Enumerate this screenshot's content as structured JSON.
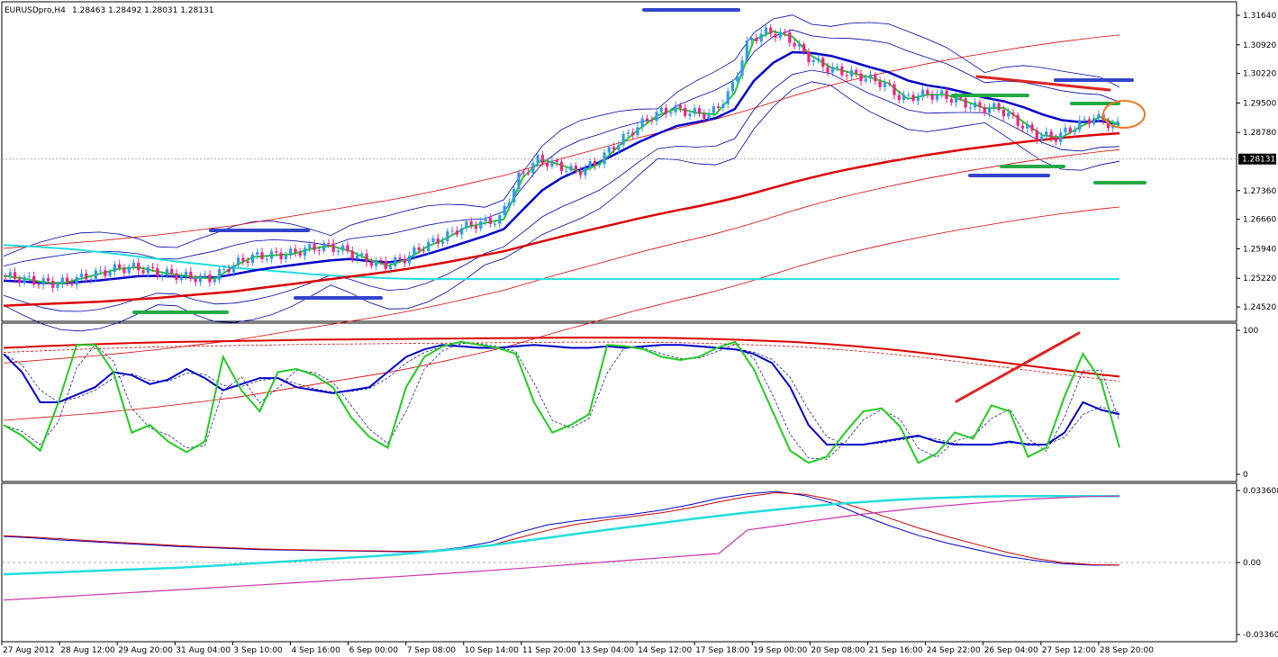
{
  "header": {
    "symbol": "EURUSDpro,H4",
    "ohlc": "1.28463 1.28492 1.28031 1.28131"
  },
  "colors": {
    "bull": "#3399ee",
    "bear": "#ee2288",
    "ema_fast": "#22cc22",
    "ema_mid": "#0000cc",
    "ma_slow": "#dd0000",
    "cyan": "#22dddd",
    "magenta": "#cc33aa",
    "orange": "#ee7722"
  },
  "chart_data": [
    {
      "type": "candlestick",
      "panel": "price",
      "ylim": [
        1.2417,
        1.3197
      ],
      "y_ticks": [
        "1.31640",
        "1.30920",
        "1.30220",
        "1.29500",
        "1.28780",
        "1.27360",
        "1.26660",
        "1.25940",
        "1.25220",
        "1.24520"
      ],
      "current_price": "1.28131",
      "series": [
        {
          "name": "ema_fast",
          "values": [
            1.2528,
            1.2522,
            1.2513,
            1.2509,
            1.2521,
            1.2533,
            1.2545,
            1.2549,
            1.2538,
            1.2531,
            1.2524,
            1.2521,
            1.2552,
            1.2574,
            1.2578,
            1.2581,
            1.2594,
            1.2601,
            1.2589,
            1.2567,
            1.2553,
            1.2569,
            1.2599,
            1.2619,
            1.2646,
            1.2657,
            1.2666,
            1.2769,
            1.2812,
            1.2798,
            1.2781,
            1.2802,
            1.2846,
            1.2885,
            1.292,
            1.2937,
            1.2926,
            1.2922,
            1.2975,
            1.3104,
            1.3125,
            1.3112,
            1.3065,
            1.3037,
            1.3024,
            1.3013,
            1.2998,
            1.296,
            1.297,
            1.297,
            1.2954,
            1.2937,
            1.2938,
            1.2904,
            1.2871,
            1.2866,
            1.2893,
            1.2916,
            1.2895
          ]
        },
        {
          "name": "ema_mid",
          "values": [
            1.2516,
            1.2514,
            1.2511,
            1.251,
            1.2513,
            1.2517,
            1.2522,
            1.2527,
            1.2528,
            1.2526,
            1.2524,
            1.2524,
            1.2532,
            1.2541,
            1.2548,
            1.2554,
            1.256,
            1.2566,
            1.2569,
            1.2564,
            1.2561,
            1.2568,
            1.2581,
            1.2595,
            1.261,
            1.2625,
            1.2642,
            1.269,
            1.2737,
            1.2767,
            1.2788,
            1.2806,
            1.283,
            1.2854,
            1.2875,
            1.2894,
            1.2903,
            1.2913,
            1.2935,
            1.3004,
            1.3048,
            1.3074,
            1.3072,
            1.3065,
            1.3052,
            1.3038,
            1.3025,
            1.3005,
            1.2993,
            1.2986,
            1.2975,
            1.2963,
            1.2954,
            1.294,
            1.2922,
            1.2908,
            1.2903,
            1.2906,
            1.2898
          ]
        },
        {
          "name": "ma_slow",
          "values": [
            1.2455,
            1.2457,
            1.2459,
            1.2461,
            1.2463,
            1.2465,
            1.2468,
            1.2471,
            1.2474,
            1.2478,
            1.2482,
            1.2486,
            1.249,
            1.2496,
            1.2502,
            1.2508,
            1.2514,
            1.252,
            1.2526,
            1.2532,
            1.2538,
            1.2545,
            1.2553,
            1.2561,
            1.257,
            1.2579,
            1.2588,
            1.26,
            1.2612,
            1.2624,
            1.2635,
            1.2646,
            1.2657,
            1.2668,
            1.2678,
            1.2688,
            1.2697,
            1.2707,
            1.2718,
            1.273,
            1.2743,
            1.2756,
            1.2768,
            1.2779,
            1.2789,
            1.2798,
            1.2807,
            1.2815,
            1.2823,
            1.283,
            1.2837,
            1.2843,
            1.2849,
            1.2855,
            1.286,
            1.2865,
            1.2869,
            1.2873,
            1.2876
          ]
        },
        {
          "name": "cyan_line",
          "values": [
            1.2603,
            1.2601,
            1.2598,
            1.2595,
            1.2591,
            1.2586,
            1.2581,
            1.2575,
            1.2569,
            1.2563,
            1.2558,
            1.2553,
            1.2548,
            1.2544,
            1.254,
            1.2536,
            1.2532,
            1.2529,
            1.2526,
            1.2524,
            1.2522,
            1.2521,
            1.252,
            1.252,
            1.252,
            1.252,
            1.252,
            1.252,
            1.252,
            1.252,
            1.252,
            1.252,
            1.252,
            1.252,
            1.252,
            1.252,
            1.252,
            1.252,
            1.252,
            1.252,
            1.252,
            1.252,
            1.252,
            1.252,
            1.252,
            1.252,
            1.252,
            1.252,
            1.252,
            1.252,
            1.252,
            1.252,
            1.252,
            1.252,
            1.252,
            1.252,
            1.252,
            1.252,
            1.252
          ]
        }
      ]
    },
    {
      "type": "line",
      "panel": "oscillator",
      "ylim": [
        0,
        100
      ],
      "y_ticks": [
        "100",
        "0"
      ],
      "series": [
        {
          "name": "green",
          "values": [
            35,
            28,
            18,
            50,
            88,
            88,
            70,
            30,
            35,
            24,
            17,
            24,
            80,
            58,
            44,
            70,
            72,
            68,
            60,
            40,
            27,
            20,
            60,
            80,
            87,
            90,
            88,
            86,
            82,
            50,
            30,
            35,
            42,
            88,
            87,
            85,
            80,
            78,
            80,
            86,
            90,
            72,
            45,
            18,
            10,
            14,
            30,
            44,
            46,
            34,
            10,
            16,
            30,
            26,
            48,
            44,
            14,
            20,
            54,
            82,
            64,
            20
          ]
        },
        {
          "name": "blue",
          "values": [
            82,
            70,
            50,
            50,
            55,
            60,
            70,
            68,
            62,
            65,
            72,
            66,
            58,
            62,
            66,
            66,
            60,
            58,
            56,
            58,
            60,
            70,
            80,
            85,
            88,
            87,
            86,
            86,
            87,
            88,
            87,
            86,
            86,
            87,
            86,
            87,
            88,
            88,
            87,
            86,
            85,
            82,
            76,
            60,
            35,
            22,
            22,
            22,
            24,
            26,
            28,
            24,
            22,
            22,
            22,
            24,
            22,
            22,
            30,
            50,
            45,
            42
          ]
        },
        {
          "name": "red",
          "values": [
            86,
            86.5,
            87,
            87.5,
            88,
            88.4,
            88.8,
            89.2,
            89.5,
            89.8,
            90,
            90.2,
            90.4,
            90.6,
            90.8,
            91,
            91.2,
            91.4,
            91.5,
            91.6,
            91.7,
            91.8,
            91.9,
            92,
            92.1,
            92.2,
            92.3,
            92.4,
            92.5,
            92.6,
            92.7,
            92.8,
            92.8,
            92.8,
            92.8,
            92.7,
            92.6,
            92.4,
            92.1,
            91.8,
            91.4,
            91,
            90.5,
            90,
            89.3,
            88.5,
            87.6,
            86.6,
            85.5,
            84.3,
            83,
            81.6,
            80.2,
            78.7,
            77.2,
            75.7,
            74.2,
            72.7,
            71.2,
            69.7,
            68.3,
            67
          ]
        }
      ]
    },
    {
      "type": "line",
      "panel": "indicator",
      "ylim": [
        -0.0336,
        0.0336
      ],
      "y_ticks": [
        "0.033608",
        "0.00",
        "-0.03360"
      ],
      "series": [
        {
          "name": "blue",
          "values": [
            0.0122,
            0.0115,
            0.0105,
            0.0098,
            0.009,
            0.0083,
            0.0075,
            0.007,
            0.0065,
            0.006,
            0.0058,
            0.0056,
            0.0054,
            0.0052,
            0.005,
            0.0055,
            0.007,
            0.0095,
            0.014,
            0.0175,
            0.0195,
            0.021,
            0.0225,
            0.0245,
            0.027,
            0.03,
            0.032,
            0.0332,
            0.0312,
            0.0275,
            0.022,
            0.017,
            0.0125,
            0.009,
            0.006,
            0.003,
            0.001,
            -0.0005,
            -0.0012,
            -0.0012
          ]
        },
        {
          "name": "red",
          "values": [
            0.0125,
            0.0119,
            0.0111,
            0.0102,
            0.0094,
            0.0087,
            0.008,
            0.0073,
            0.0068,
            0.0063,
            0.006,
            0.0058,
            0.0056,
            0.0054,
            0.0052,
            0.0054,
            0.0062,
            0.008,
            0.0115,
            0.015,
            0.0178,
            0.0198,
            0.0215,
            0.0232,
            0.0255,
            0.0283,
            0.0308,
            0.0326,
            0.0318,
            0.0292,
            0.025,
            0.0205,
            0.016,
            0.012,
            0.0085,
            0.005,
            0.002,
            0.0,
            -0.001,
            -0.0012
          ]
        },
        {
          "name": "cyan",
          "values": [
            -0.0055,
            -0.005,
            -0.0045,
            -0.004,
            -0.0035,
            -0.003,
            -0.0025,
            -0.0018,
            -0.001,
            -0.0002,
            0.0006,
            0.0014,
            0.0022,
            0.003,
            0.004,
            0.0052,
            0.0065,
            0.008,
            0.0097,
            0.0115,
            0.0133,
            0.0151,
            0.0168,
            0.0185,
            0.0202,
            0.0218,
            0.0233,
            0.0247,
            0.026,
            0.0272,
            0.0282,
            0.0291,
            0.0298,
            0.0303,
            0.0307,
            0.0309,
            0.031,
            0.031,
            0.031,
            0.031
          ]
        },
        {
          "name": "magenta",
          "values": [
            -0.0175,
            -0.0168,
            -0.016,
            -0.0152,
            -0.0144,
            -0.0136,
            -0.0128,
            -0.012,
            -0.0112,
            -0.0104,
            -0.0096,
            -0.0088,
            -0.008,
            -0.0072,
            -0.0064,
            -0.0055,
            -0.0046,
            -0.0037,
            -0.0028,
            -0.0018,
            -0.0008,
            0.0002,
            0.0012,
            0.0022,
            0.0032,
            0.0042,
            0.0152,
            0.017,
            0.019,
            0.0208,
            0.0225,
            0.024,
            0.0254,
            0.0266,
            0.0277,
            0.0287,
            0.0296,
            0.0303,
            0.0308,
            0.031
          ]
        }
      ]
    }
  ],
  "x_labels": [
    "27 Aug 2012",
    "28 Aug 12:00",
    "29 Aug 20:00",
    "31 Aug 04:00",
    "3 Sep 10:00",
    "4 Sep 16:00",
    "6 Sep 00:00",
    "7 Sep 08:00",
    "10 Sep 14:00",
    "11 Sep 20:00",
    "13 Sep 04:00",
    "14 Sep 12:00",
    "17 Sep 18:00",
    "19 Sep 00:00",
    "20 Sep 08:00",
    "21 Sep 16:00",
    "24 Sep 22:00",
    "26 Sep 04:00",
    "27 Sep 12:00",
    "28 Sep 20:00"
  ]
}
